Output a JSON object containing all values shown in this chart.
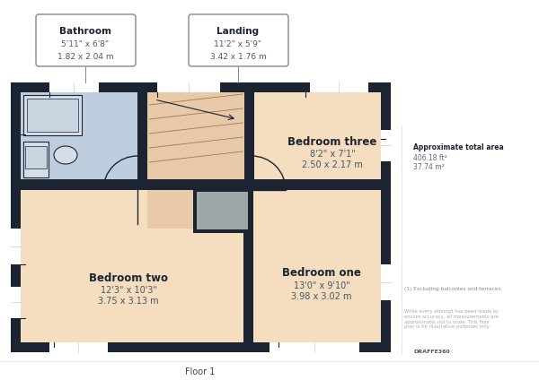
{
  "bg_color": "#ffffff",
  "wall_color": "#1c2331",
  "floor_peach": "#f5ddc0",
  "floor_blue": "#bfcede",
  "floor_landing": "#e8c9a8",
  "floor_gray": "#9ea8a8",
  "title": "Floor 1",
  "right_panel": {
    "approx_title": "Approximate total area",
    "area_ft": "406.18 ft²",
    "area_m": "37.74 m²",
    "footnote": "(1) Excluding balconies and terraces",
    "disclaimer": "While every attempt has been made to\nensure accuracy, all measurements are\napproximate, not to scale. This floor\nplan is for illustrative purposes only.",
    "brand": "DRAFFE360"
  }
}
